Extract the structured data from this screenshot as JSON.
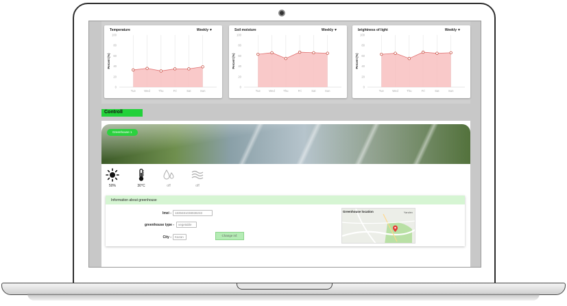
{
  "charts": [
    {
      "title": "Temperature",
      "period": "Weekly",
      "chart_data": {
        "type": "area",
        "title": "Temperature",
        "ylabel": "Percent (%)",
        "ylim": [
          0,
          100
        ],
        "yticks": [
          "0",
          "20",
          "40",
          "60",
          "80",
          "100"
        ],
        "categories": [
          "Tue",
          "Wed",
          "Thu",
          "Fri",
          "Sat",
          "Sun"
        ],
        "x": [
          0,
          1,
          2,
          3,
          4,
          5,
          6
        ],
        "values": [
          33,
          36,
          31,
          35,
          35,
          39
        ],
        "tick_x": [
          0.5,
          1.5,
          2.5,
          3.5,
          4.5,
          5.5
        ]
      }
    },
    {
      "title": "Soil moisture",
      "period": "Weekly",
      "chart_data": {
        "type": "area",
        "title": "Soil moisture",
        "ylabel": "Percent (%)",
        "ylim": [
          0,
          100
        ],
        "yticks": [
          "0",
          "20",
          "40",
          "60",
          "80",
          "100"
        ],
        "categories": [
          "Tue",
          "Wed",
          "Thu",
          "Fri",
          "Sat",
          "Sun"
        ],
        "values": [
          63,
          66,
          55,
          67,
          66,
          65
        ]
      }
    },
    {
      "title": "brightness of light",
      "period": "Weekly",
      "chart_data": {
        "type": "area",
        "title": "brightness of light",
        "ylabel": "Percent (%)",
        "ylim": [
          0,
          100
        ],
        "yticks": [
          "0",
          "20",
          "40",
          "60",
          "80",
          "100"
        ],
        "categories": [
          "Tue",
          "Wed",
          "Thu",
          "Fri",
          "Sat",
          "Sun"
        ],
        "values": [
          63,
          65,
          55,
          67,
          65,
          66
        ]
      }
    }
  ],
  "control": {
    "label": "Controll"
  },
  "greenhouse": {
    "name": "Greenhouse 1"
  },
  "sensors": [
    {
      "icon": "sun-icon",
      "value": "50%",
      "state": "on"
    },
    {
      "icon": "thermometer-icon",
      "value": "30°C",
      "state": "on"
    },
    {
      "icon": "water-drops-icon",
      "value": "off",
      "state": "off"
    },
    {
      "icon": "wind-icon",
      "value": "off",
      "state": "off"
    }
  ],
  "info": {
    "title": "Information about greenhouse",
    "imei_label": "Imei -",
    "imei_value": "1839481038938233",
    "type_label": "greenhouse type -",
    "type_value": "vegetable",
    "city_label": "City -",
    "city_value": "Kazan",
    "change_label": "Change inf.",
    "map_title": "Greenhouse location",
    "map_badge": "Yandex"
  },
  "colors": {
    "accent": "#22d13a",
    "chart_fill": "#f8c0c0",
    "chart_line": "#e07070",
    "info_header": "#d6f5d3"
  }
}
